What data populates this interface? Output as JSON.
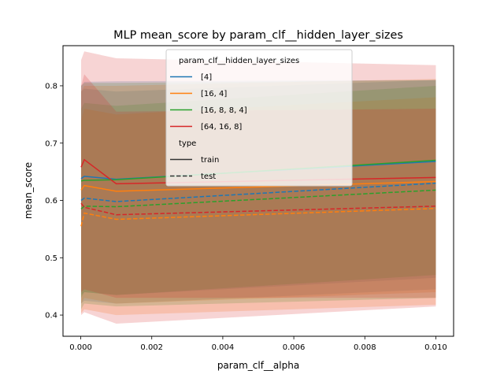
{
  "chart_data": {
    "type": "line",
    "title": "MLP mean_score by param_clf__hidden_layer_sizes",
    "xlabel": "param_clf__alpha",
    "ylabel": "mean_score",
    "xlim": [
      -0.0005,
      0.0105
    ],
    "ylim": [
      0.363,
      0.87
    ],
    "xticks": [
      0.0,
      0.002,
      0.004,
      0.006,
      0.008,
      0.01
    ],
    "xtick_labels": [
      "0.000",
      "0.002",
      "0.004",
      "0.006",
      "0.008",
      "0.010"
    ],
    "yticks": [
      0.4,
      0.5,
      0.6,
      0.7,
      0.8
    ],
    "ytick_labels": [
      "0.4",
      "0.5",
      "0.6",
      "0.7",
      "0.8"
    ],
    "x": [
      1e-05,
      0.0001,
      0.001,
      0.01
    ],
    "grid": false,
    "legend": {
      "position": "upper-center",
      "hue_title": "param_clf__hidden_layer_sizes",
      "style_title": "type",
      "style_entries": [
        {
          "label": "train",
          "dash": "solid"
        },
        {
          "label": "test",
          "dash": "dashed"
        }
      ]
    },
    "series": [
      {
        "name": "[4]",
        "color": "#1f77b4",
        "train": {
          "values": [
            0.638,
            0.642,
            0.637,
            0.668
          ],
          "lower": [
            0.435,
            0.44,
            0.435,
            0.465
          ],
          "upper": [
            0.8,
            0.807,
            0.808,
            0.81
          ]
        },
        "test": {
          "values": [
            0.6,
            0.604,
            0.598,
            0.63
          ],
          "lower": [
            0.42,
            0.425,
            0.42,
            0.445
          ],
          "upper": [
            0.79,
            0.795,
            0.79,
            0.81
          ]
        }
      },
      {
        "name": "[16, 4]",
        "color": "#ff7f0e",
        "train": {
          "values": [
            0.618,
            0.626,
            0.616,
            0.633
          ],
          "lower": [
            0.42,
            0.43,
            0.42,
            0.44
          ],
          "upper": [
            0.79,
            0.8,
            0.8,
            0.812
          ]
        },
        "test": {
          "values": [
            0.555,
            0.578,
            0.567,
            0.586
          ],
          "lower": [
            0.403,
            0.41,
            0.4,
            0.418
          ],
          "upper": [
            0.74,
            0.76,
            0.75,
            0.78
          ]
        }
      },
      {
        "name": "[16, 8, 8, 4]",
        "color": "#2ca02c",
        "train": {
          "values": [
            0.634,
            0.635,
            0.636,
            0.67
          ],
          "lower": [
            0.43,
            0.44,
            0.435,
            0.47
          ],
          "upper": [
            0.8,
            0.805,
            0.805,
            0.81
          ]
        },
        "test": {
          "values": [
            0.585,
            0.59,
            0.589,
            0.618
          ],
          "lower": [
            0.41,
            0.42,
            0.415,
            0.43
          ],
          "upper": [
            0.76,
            0.77,
            0.765,
            0.8
          ]
        }
      },
      {
        "name": "[64, 16, 8]",
        "color": "#d62728",
        "train": {
          "values": [
            0.658,
            0.671,
            0.629,
            0.64
          ],
          "lower": [
            0.44,
            0.445,
            0.43,
            0.43
          ],
          "upper": [
            0.845,
            0.86,
            0.848,
            0.836
          ]
        },
        "test": {
          "values": [
            0.595,
            0.588,
            0.575,
            0.59
          ],
          "lower": [
            0.4,
            0.405,
            0.385,
            0.415
          ],
          "upper": [
            0.8,
            0.82,
            0.755,
            0.76
          ]
        }
      }
    ]
  }
}
